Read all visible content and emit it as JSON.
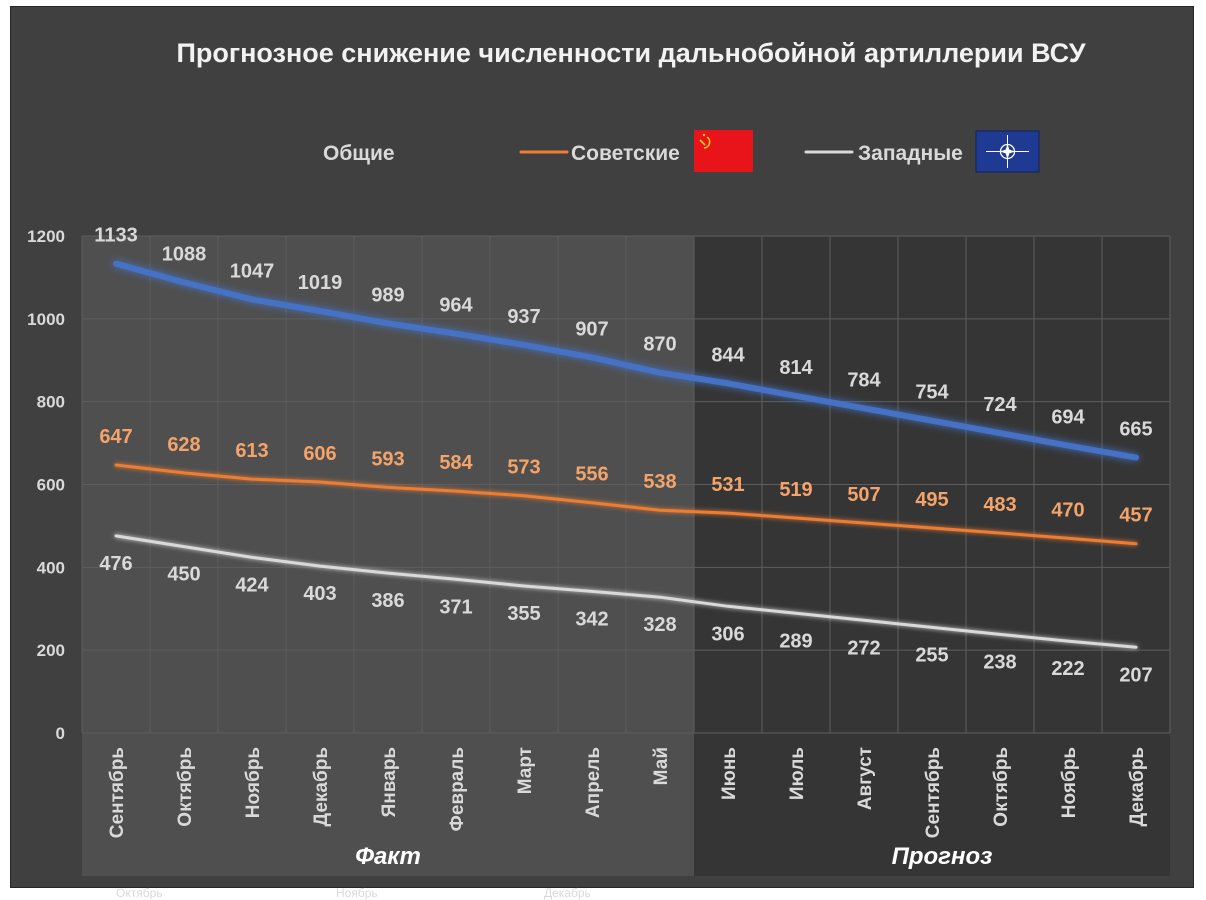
{
  "chart_data": {
    "type": "line",
    "title": "Прогнозное снижение численности дальнобойной артиллерии ВСУ",
    "categories": [
      "Сентябрь",
      "Октябрь",
      "Ноябрь",
      "Декабрь",
      "Январь",
      "Февраль",
      "Март",
      "Апрель",
      "Май",
      "Июнь",
      "Июль",
      "Август",
      "Сентябрь",
      "Октябрь",
      "Ноябрь",
      "Декабрь"
    ],
    "ylim": [
      0,
      1200
    ],
    "yticks": [
      0,
      200,
      400,
      600,
      800,
      1000,
      1200
    ],
    "grid": true,
    "legend_position": "top",
    "series": [
      {
        "name": "Общие",
        "color": "#4472c4",
        "values": [
          1133,
          1088,
          1047,
          1019,
          989,
          964,
          937,
          907,
          870,
          844,
          814,
          784,
          754,
          724,
          694,
          665
        ]
      },
      {
        "name": "Советские",
        "color": "#ed7d31",
        "values": [
          647,
          628,
          613,
          606,
          593,
          584,
          573,
          556,
          538,
          531,
          519,
          507,
          495,
          483,
          470,
          457
        ]
      },
      {
        "name": "Западные",
        "color": "#d9d9d9",
        "values": [
          476,
          450,
          424,
          403,
          386,
          371,
          355,
          342,
          328,
          306,
          289,
          272,
          255,
          238,
          222,
          207
        ]
      }
    ],
    "regions": [
      {
        "label": "Факт",
        "from": 0,
        "to": 8
      },
      {
        "label": "Прогноз",
        "from": 9,
        "to": 15
      }
    ],
    "legend_icons": [
      "ussr-flag-icon",
      "nato-flag-icon"
    ],
    "footer_ghost_labels": [
      "Октябрь",
      "Ноябрь",
      "Декабрь"
    ]
  }
}
